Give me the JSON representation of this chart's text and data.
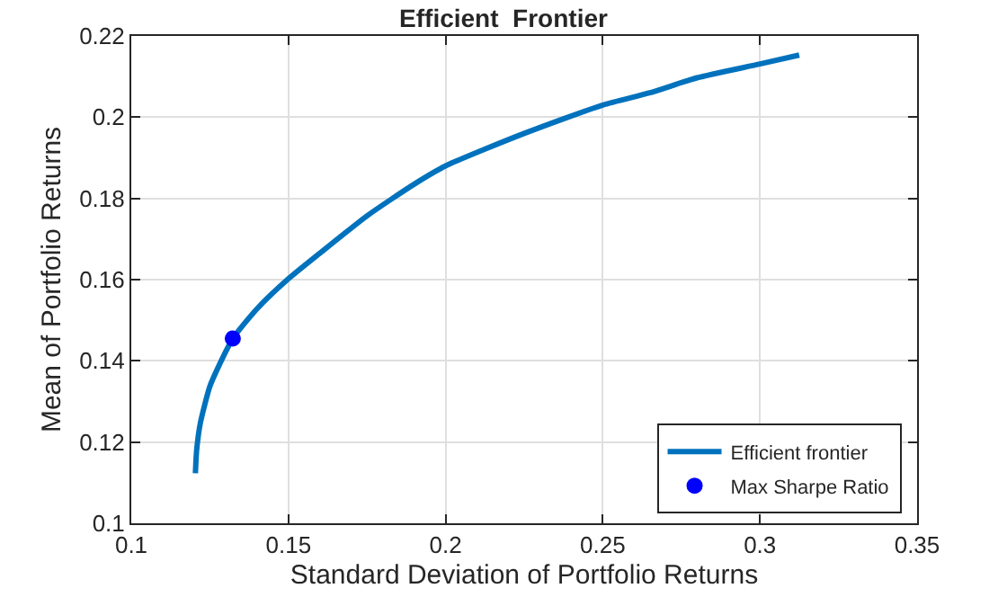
{
  "chart_data": {
    "type": "line",
    "title": "Efficient  Frontier",
    "xlabel": "Standard Deviation of Portfolio Returns",
    "ylabel": "Mean of Portfolio Returns",
    "series": [
      {
        "name": "Efficient frontier",
        "color": "#0072bd",
        "x": [
          0.1204,
          0.1208,
          0.122,
          0.125,
          0.128,
          0.1323,
          0.14,
          0.15,
          0.16,
          0.175,
          0.19,
          0.2,
          0.225,
          0.25,
          0.265,
          0.28,
          0.3,
          0.3125
        ],
        "values": [
          0.1123,
          0.118,
          0.1248,
          0.1337,
          0.139,
          0.1455,
          0.1528,
          0.1602,
          0.1665,
          0.1757,
          0.1835,
          0.188,
          0.196,
          0.203,
          0.206,
          0.2097,
          0.2131,
          0.2153
        ]
      },
      {
        "name": "Max Sharpe Ratio",
        "type": "scatter",
        "marker": "circle",
        "color": "#0000ff",
        "x": [
          0.1323
        ],
        "values": [
          0.1455
        ]
      }
    ],
    "xlim": [
      0.1,
      0.35
    ],
    "xticks": [
      0.1,
      0.15,
      0.2,
      0.25,
      0.3,
      0.35
    ],
    "ylim": [
      0.1,
      0.22
    ],
    "yticks": [
      0.1,
      0.12,
      0.14,
      0.16,
      0.18,
      0.2,
      0.22
    ],
    "grid": true,
    "legend": "bottom right"
  }
}
